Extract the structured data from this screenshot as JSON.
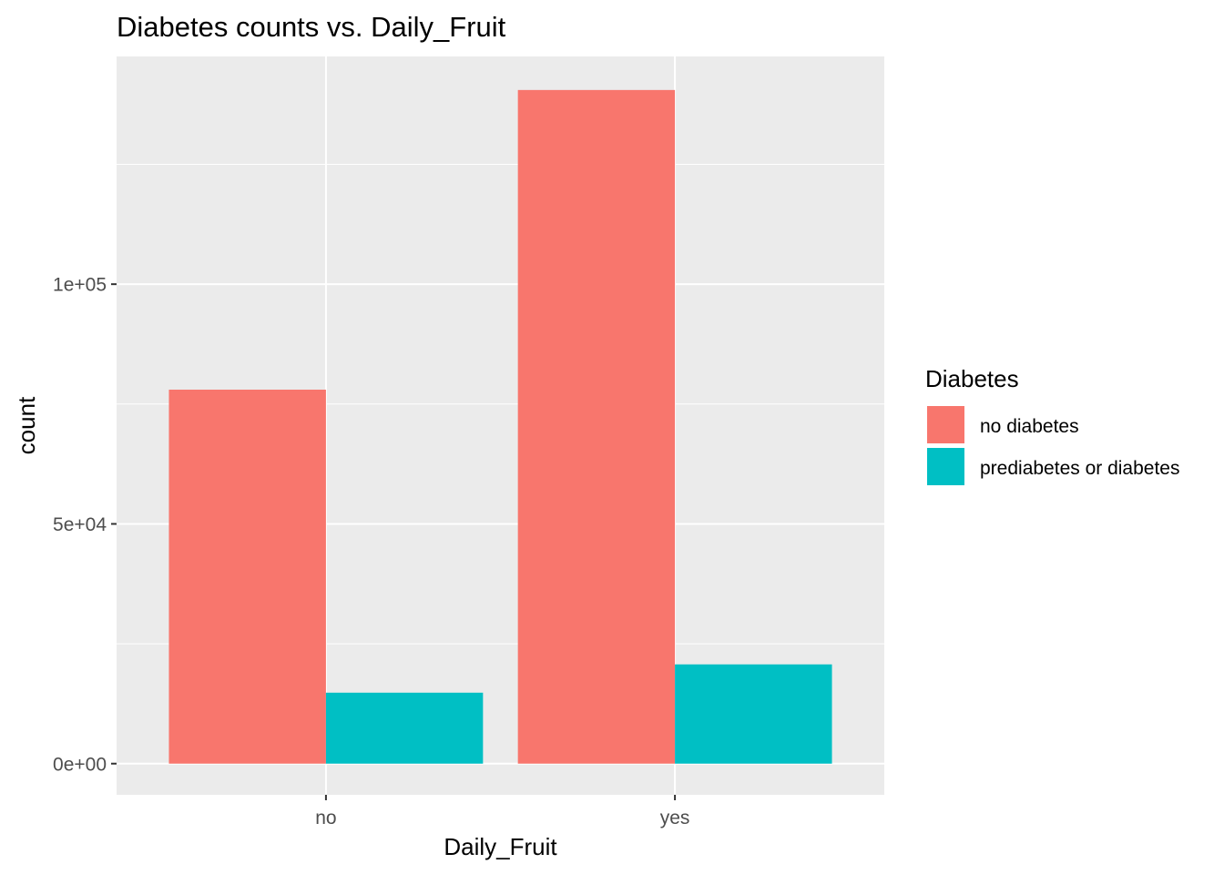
{
  "chart_data": {
    "type": "bar",
    "title": "Diabetes counts vs. Daily_Fruit",
    "xlabel": "Daily_Fruit",
    "ylabel": "count",
    "categories": [
      "no",
      "yes"
    ],
    "series": [
      {
        "name": "no diabetes",
        "values": [
          78000,
          140500
        ],
        "color": "#F8766D"
      },
      {
        "name": "prediabetes or diabetes",
        "values": [
          14800,
          20700
        ],
        "color": "#00BFC4"
      }
    ],
    "ylim": [
      -6500,
      147500
    ],
    "yticks": [
      0,
      50000,
      100000
    ],
    "ytick_labels": [
      "0e+00",
      "5e+04",
      "1e+05"
    ],
    "grid": true,
    "legend": {
      "title": "Diabetes",
      "position": "right"
    },
    "panel_color": "#EBEBEB"
  }
}
